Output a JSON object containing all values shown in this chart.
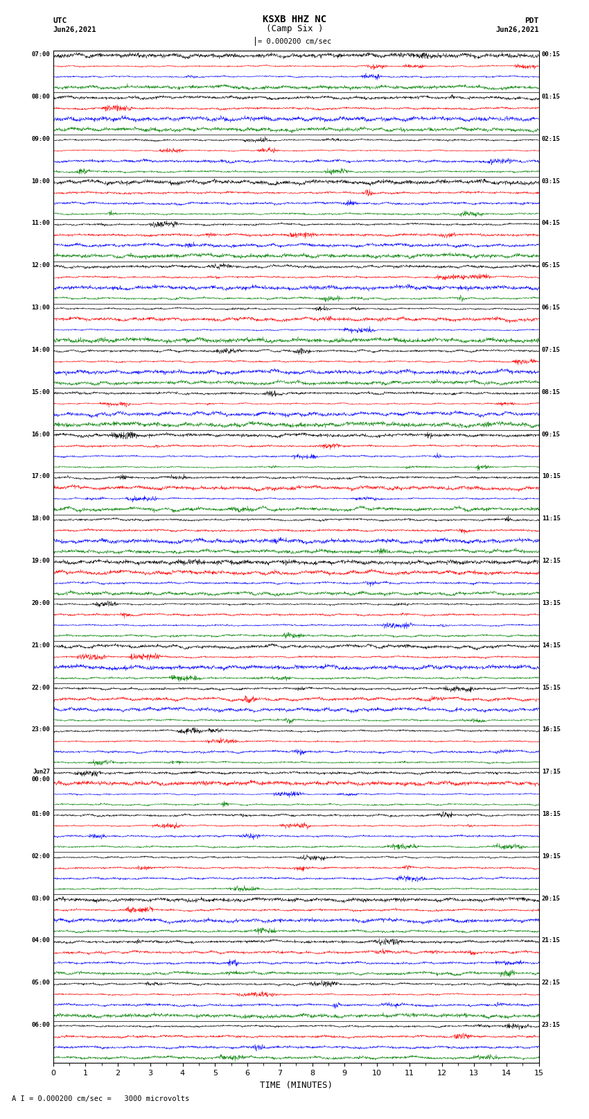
{
  "title_line1": "KSXB HHZ NC",
  "title_line2": "(Camp Six )",
  "scale_label": "= 0.000200 cm/sec",
  "footer_label": "A I = 0.000200 cm/sec =   3000 microvolts",
  "xlabel": "TIME (MINUTES)",
  "left_times": [
    "07:00",
    "08:00",
    "09:00",
    "10:00",
    "11:00",
    "12:00",
    "13:00",
    "14:00",
    "15:00",
    "16:00",
    "17:00",
    "18:00",
    "19:00",
    "20:00",
    "21:00",
    "22:00",
    "23:00",
    "Jun27\n00:00",
    "01:00",
    "02:00",
    "03:00",
    "04:00",
    "05:00",
    "06:00"
  ],
  "right_times": [
    "00:15",
    "01:15",
    "02:15",
    "03:15",
    "04:15",
    "05:15",
    "06:15",
    "07:15",
    "08:15",
    "09:15",
    "10:15",
    "11:15",
    "12:15",
    "13:15",
    "14:15",
    "15:15",
    "16:15",
    "17:15",
    "18:15",
    "19:15",
    "20:15",
    "21:15",
    "22:15",
    "23:15"
  ],
  "colors": [
    "black",
    "red",
    "blue",
    "green"
  ],
  "num_rows": 24,
  "traces_per_row": 4,
  "minutes": 15,
  "background": "white",
  "noise_seed": 42,
  "left_header_line1": "UTC",
  "left_header_line2": "Jun26,2021",
  "right_header_line1": "PDT",
  "right_header_line2": "Jun26,2021"
}
